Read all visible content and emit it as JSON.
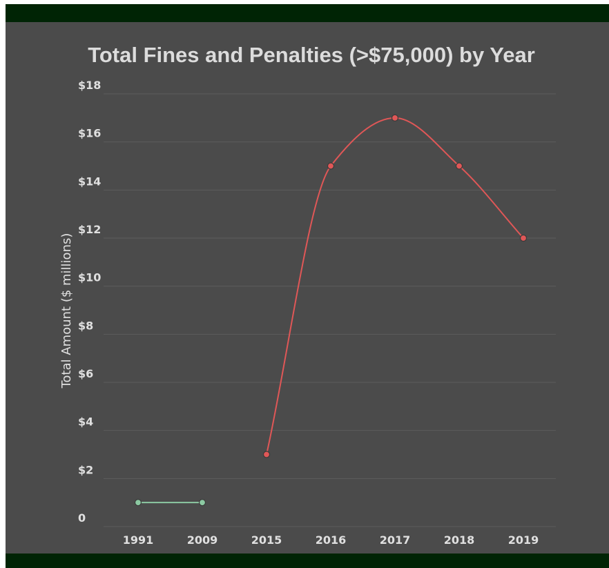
{
  "chart_data": {
    "type": "line",
    "title": "Total Fines and Penalties (>$75,000) by Year",
    "xlabel": "",
    "ylabel": "Total Amount ($ millions)",
    "categories": [
      "1991",
      "2009",
      "2015",
      "2016",
      "2017",
      "2018",
      "2019"
    ],
    "y_tick_labels": [
      "0",
      "$2",
      "$4",
      "$6",
      "$8",
      "$10",
      "$12",
      "$14",
      "$16",
      "$18"
    ],
    "ylim": [
      0,
      18
    ],
    "grid": true,
    "legend": "none",
    "series": [
      {
        "color": "#8cc9a2",
        "points": [
          [
            "1991",
            1
          ],
          [
            "2009",
            1
          ]
        ]
      },
      {
        "color": "#e05757",
        "points": [
          [
            "2015",
            3
          ],
          [
            "2016",
            15
          ],
          [
            "2017",
            17
          ],
          [
            "2018",
            15
          ],
          [
            "2019",
            12
          ]
        ]
      }
    ]
  },
  "colors": {
    "frame": "#002405",
    "background": "#4b4b4b",
    "grid": "#5c5c5c",
    "text": "#e0e0e0"
  }
}
